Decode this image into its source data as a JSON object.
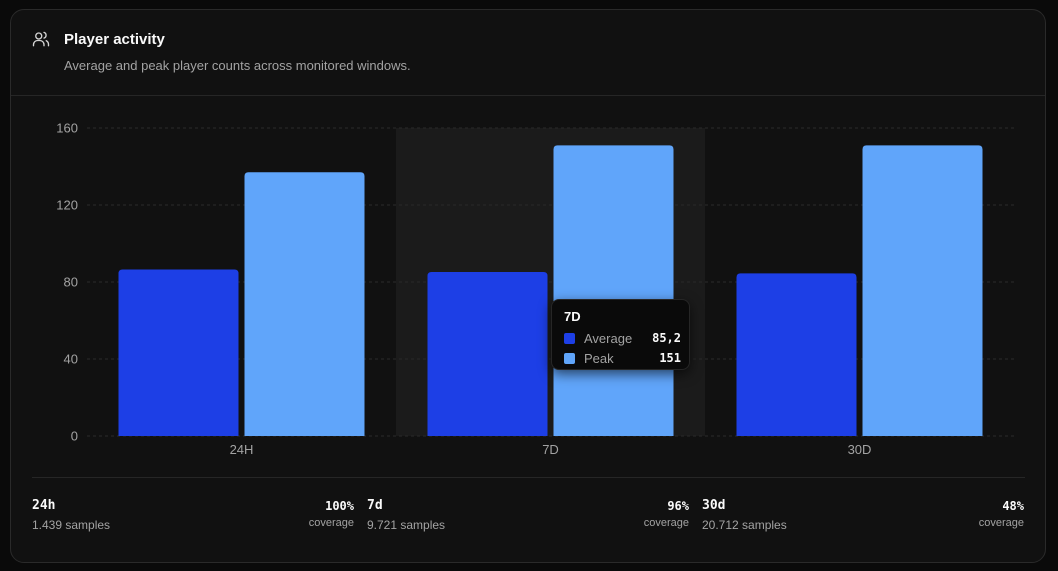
{
  "header": {
    "title": "Player activity",
    "subtitle": "Average and peak player counts across monitored windows."
  },
  "chart_data": {
    "type": "bar",
    "categories": [
      "24H",
      "7D",
      "30D"
    ],
    "series": [
      {
        "name": "Average",
        "color": "#1d3fe6",
        "values": [
          86.5,
          85.2,
          84.5
        ]
      },
      {
        "name": "Peak",
        "color": "#60a5fa",
        "values": [
          137,
          151,
          151
        ]
      }
    ],
    "ylim": [
      0,
      160
    ],
    "yticks": [
      0,
      40,
      80,
      120,
      160
    ],
    "grid": true,
    "highlighted_category": "7D"
  },
  "tooltip": {
    "title": "7D",
    "rows": [
      {
        "name": "Average",
        "value": "85,2"
      },
      {
        "name": "Peak",
        "value": "151"
      }
    ]
  },
  "stats": [
    {
      "label": "24h",
      "samples": "1.439 samples",
      "coverage": "100%",
      "coverage_label": "coverage"
    },
    {
      "label": "7d",
      "samples": "9.721 samples",
      "coverage": "96%",
      "coverage_label": "coverage"
    },
    {
      "label": "30d",
      "samples": "20.712 samples",
      "coverage": "48%",
      "coverage_label": "coverage"
    }
  ],
  "colors": {
    "background": "#111111",
    "border": "#2a2a2a",
    "accent_average": "#1d3fe6",
    "accent_peak": "#60a5fa"
  }
}
